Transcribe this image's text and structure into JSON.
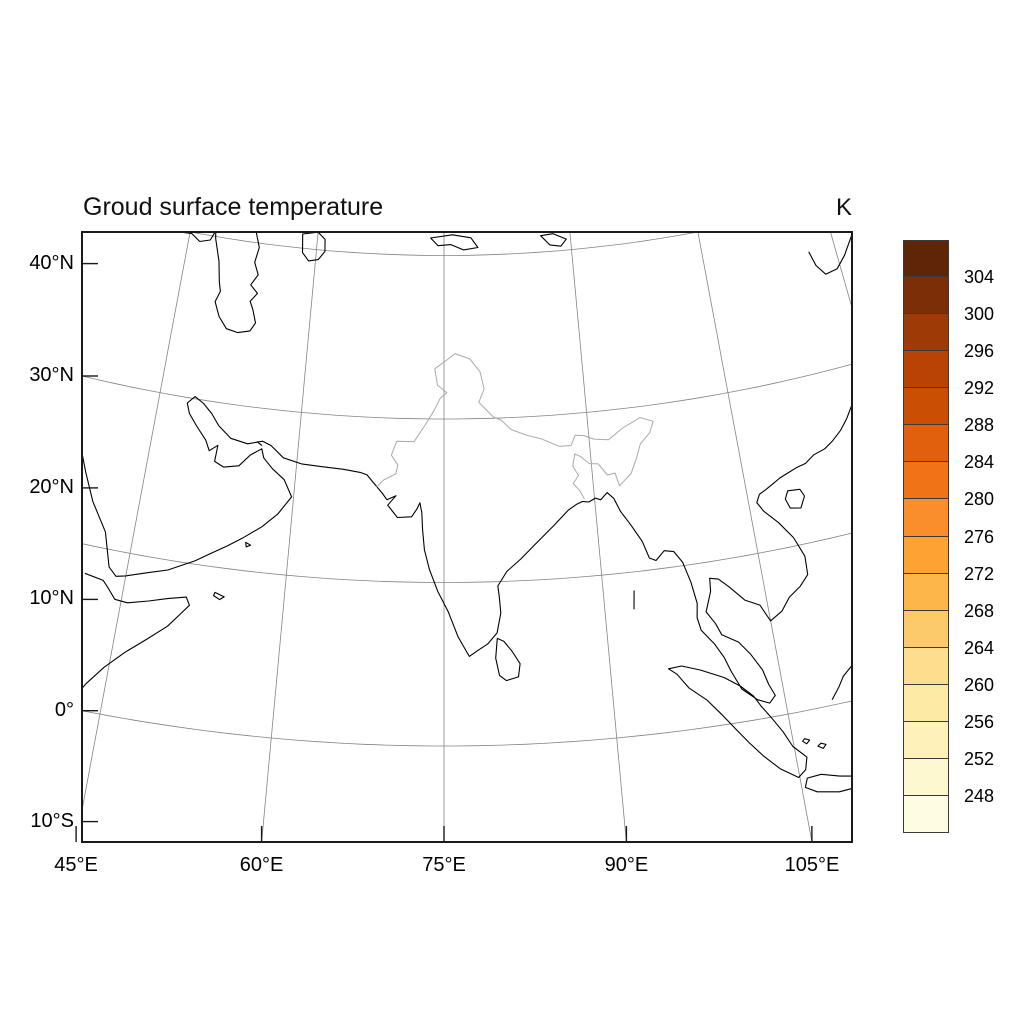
{
  "title": "Groud surface temperature",
  "colorbar": {
    "units": "K",
    "tick_labels": [
      "304",
      "300",
      "296",
      "292",
      "288",
      "284",
      "280",
      "276",
      "272",
      "268",
      "264",
      "260",
      "256",
      "252",
      "248"
    ],
    "swatches_top_to_bottom": [
      "#5e2507",
      "#7c2e06",
      "#9e3a05",
      "#b94304",
      "#ca4f04",
      "#e0600d",
      "#f07318",
      "#f98e2a",
      "#fda233",
      "#fcb64a",
      "#fcca6a",
      "#fddd8e",
      "#fdeaa4",
      "#fef2ba",
      "#fef8d0",
      "#fffce4"
    ]
  },
  "axes": {
    "lat_ticks": [
      {
        "label": "40°N",
        "value": 40
      },
      {
        "label": "30°N",
        "value": 30
      },
      {
        "label": "20°N",
        "value": 20
      },
      {
        "label": "10°N",
        "value": 10
      },
      {
        "label": "0°",
        "value": 0
      },
      {
        "label": "10°S",
        "value": -10
      }
    ],
    "lon_ticks": [
      {
        "label": "45°E",
        "value": 45
      },
      {
        "label": "60°E",
        "value": 60
      },
      {
        "label": "75°E",
        "value": 75
      },
      {
        "label": "90°E",
        "value": 90
      },
      {
        "label": "105°E",
        "value": 105
      }
    ]
  },
  "chart_data": {
    "type": "heatmap",
    "title": "Groud surface temperature",
    "units": "K",
    "region": "South Asia / Indian Ocean (approx. 45°E–107°E, 12°S–46°N)",
    "x_axis": {
      "ticks": [
        "45°E",
        "60°E",
        "75°E",
        "90°E",
        "105°E"
      ],
      "gridline_interval_deg": 15
    },
    "y_axis": {
      "ticks": [
        "40°N",
        "30°N",
        "20°N",
        "10°N",
        "0°",
        "10°S"
      ],
      "tick_interval_deg": 10,
      "gridline_interval_deg": 15
    },
    "colorbar_levels": [
      248,
      252,
      256,
      260,
      264,
      268,
      272,
      276,
      280,
      284,
      288,
      292,
      296,
      300,
      304
    ],
    "colorbar_colors_low_to_high": [
      "#fffce4",
      "#fef8d0",
      "#fef2ba",
      "#fdeaa4",
      "#fddd8e",
      "#fcca6a",
      "#fcb64a",
      "#fda233",
      "#f98e2a",
      "#f07318",
      "#e0600d",
      "#ca4f04",
      "#b94304",
      "#9e3a05",
      "#7c2e06",
      "#5e2507"
    ],
    "filled_field_visible": false,
    "legend_position": "right",
    "grid": true
  }
}
